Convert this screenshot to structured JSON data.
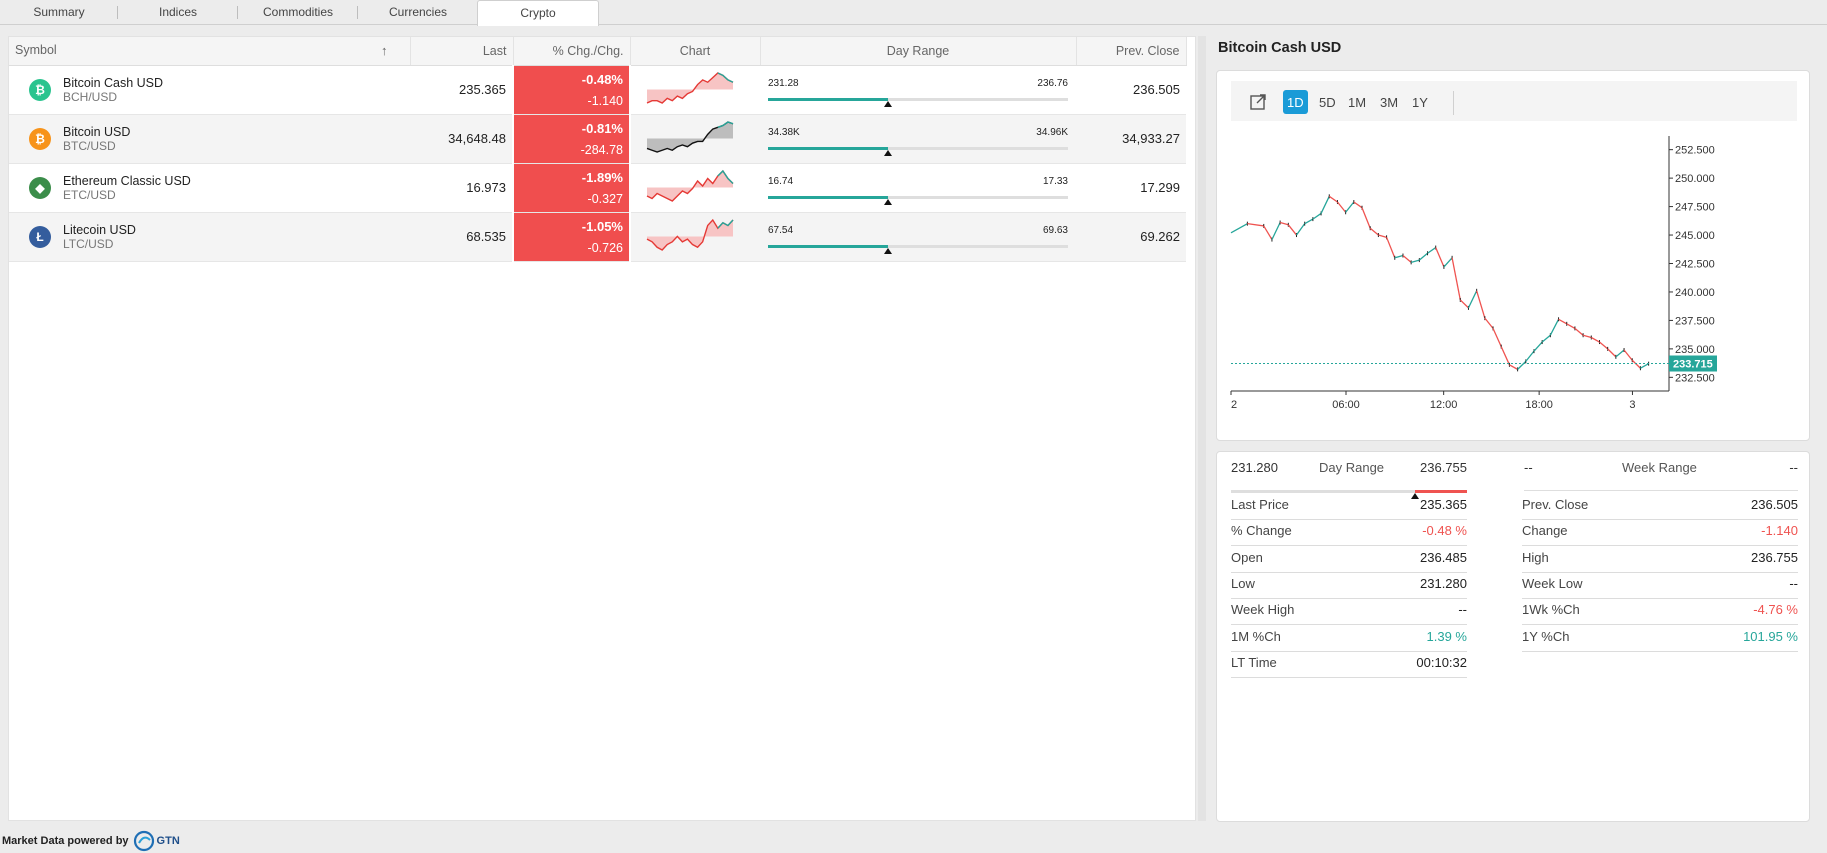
{
  "tabs": [
    "Summary",
    "Indices",
    "Commodities",
    "Currencies",
    "Crypto"
  ],
  "table": {
    "headers": {
      "symbol": "Symbol",
      "last": "Last",
      "chg": "% Chg./Chg.",
      "chart": "Chart",
      "range": "Day Range",
      "prev": "Prev. Close"
    },
    "sort_icon": "arrow-up-icon",
    "rows": [
      {
        "name": "Bitcoin Cash USD",
        "pair": "BCH/USD",
        "icon": "bitcoin-cash-icon",
        "color": "#2bc48f",
        "glyph": "₿",
        "last": "235.365",
        "pct": "-0.48%",
        "chg": "-1.140",
        "low": "231.28",
        "high": "236.76",
        "range_level": 0.4
      },
      {
        "name": "Bitcoin USD",
        "pair": "BTC/USD",
        "icon": "bitcoin-icon",
        "color": "#f7931a",
        "glyph": "₿",
        "last": "34,648.48",
        "pct": "-0.81%",
        "chg": "-284.78",
        "low": "34.38K",
        "high": "34.96K",
        "range_level": 0.4
      },
      {
        "name": "Ethereum Classic USD",
        "pair": "ETC/USD",
        "icon": "ethereum-classic-icon",
        "color": "#3b8d4a",
        "glyph": "◆",
        "last": "16.973",
        "pct": "-1.89%",
        "chg": "-0.327",
        "low": "16.74",
        "high": "17.33",
        "range_level": 0.4
      },
      {
        "name": "Litecoin USD",
        "pair": "LTC/USD",
        "icon": "litecoin-icon",
        "color": "#345d9d",
        "glyph": "Ł",
        "last": "68.535",
        "pct": "-1.05%",
        "chg": "-0.726",
        "low": "67.54",
        "high": "69.63",
        "range_level": 0.4
      }
    ]
  },
  "detail": {
    "title": "Bitcoin Cash USD",
    "toolbar": {
      "popout_icon": "popout-icon",
      "periods": [
        "1D",
        "5D",
        "1M",
        "3M",
        "1Y"
      ],
      "active": "1D"
    },
    "range": {
      "day_low": "231.280",
      "day_label": "Day Range",
      "day_high": "236.755",
      "week_low": "--",
      "week_label": "Week Range",
      "week_high": "--",
      "day_level": 0.78
    },
    "left_fields": [
      {
        "label": "Last Price",
        "value": "235.365",
        "tone": ""
      },
      {
        "label": "% Change",
        "value": "-0.48 %",
        "tone": "neg"
      },
      {
        "label": "Open",
        "value": "236.485",
        "tone": ""
      },
      {
        "label": "Low",
        "value": "231.280",
        "tone": ""
      },
      {
        "label": "Week High",
        "value": "--",
        "tone": ""
      },
      {
        "label": "1M %Ch",
        "value": "1.39 %",
        "tone": "pos"
      },
      {
        "label": "LT Time",
        "value": "00:10:32",
        "tone": ""
      }
    ],
    "right_fields": [
      {
        "label": "Prev. Close",
        "value": "236.505",
        "tone": ""
      },
      {
        "label": "Change",
        "value": "-1.140",
        "tone": "neg"
      },
      {
        "label": "High",
        "value": "236.755",
        "tone": ""
      },
      {
        "label": "Week Low",
        "value": "--",
        "tone": ""
      },
      {
        "label": "1Wk %Ch",
        "value": "-4.76 %",
        "tone": "neg"
      },
      {
        "label": "1Y %Ch",
        "value": "101.95 %",
        "tone": "pos"
      }
    ]
  },
  "chart_data": {
    "type": "line",
    "title": "",
    "xlabel": "",
    "ylabel": "",
    "x_ticks": [
      "2",
      "06:00",
      "12:00",
      "18:00",
      "3"
    ],
    "y_ticks": [
      "252.500",
      "250.000",
      "247.500",
      "245.000",
      "242.500",
      "240.000",
      "237.500",
      "235.000",
      "232.500"
    ],
    "ylim": [
      231.5,
      253.5
    ],
    "last_price_label": "233.715",
    "last_price": 233.715,
    "x": [
      0,
      1,
      2,
      2.5,
      3,
      3.5,
      4,
      4.5,
      5,
      5.5,
      6,
      6.5,
      7,
      7.5,
      8,
      8.5,
      9,
      9.5,
      10,
      10.5,
      11,
      11.5,
      12,
      12.5,
      13,
      13.5,
      14,
      14.5,
      15,
      15.5,
      16,
      16.5,
      17,
      17.5,
      18,
      18.5,
      19,
      19.5,
      20,
      20.5,
      21,
      21.5,
      22,
      22.5,
      23,
      23.5,
      24,
      24.5,
      25,
      25.5
    ],
    "values": [
      245.2,
      246.0,
      245.8,
      244.6,
      246.1,
      245.9,
      245.0,
      246.0,
      246.4,
      246.9,
      248.4,
      247.9,
      247.0,
      247.9,
      247.4,
      245.6,
      245.0,
      244.8,
      243.0,
      243.2,
      242.6,
      242.8,
      243.4,
      243.9,
      242.2,
      243.0,
      239.3,
      238.6,
      240.1,
      237.7,
      236.8,
      235.2,
      233.6,
      233.2,
      233.9,
      234.8,
      235.6,
      236.2,
      237.6,
      237.2,
      236.8,
      236.2,
      236.0,
      235.6,
      235.0,
      234.3,
      234.9,
      234.0,
      233.3,
      233.7
    ],
    "colors": {
      "up": "#26a69a",
      "down": "#ef5350",
      "last": "#26a69a"
    }
  }
}
